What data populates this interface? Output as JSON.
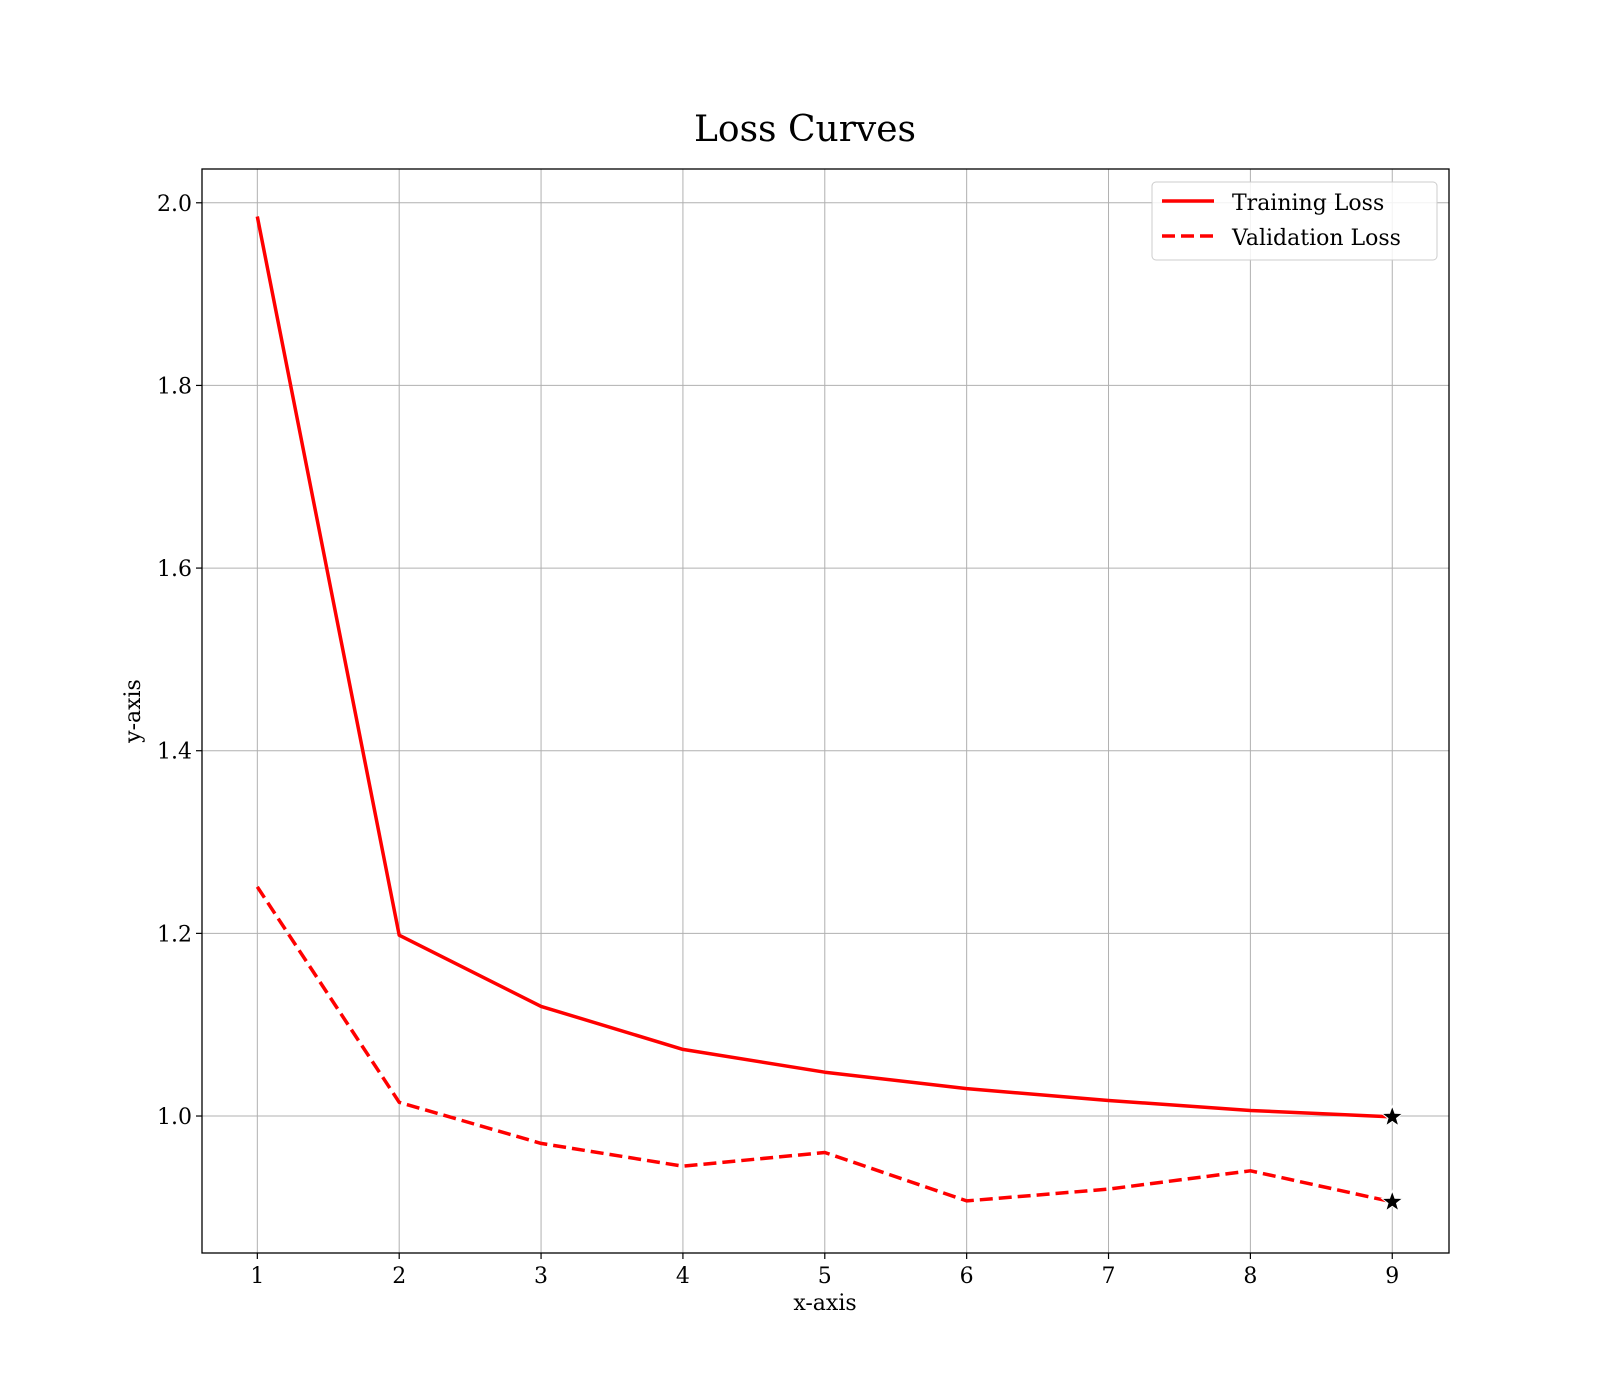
{
  "chart_data": {
    "type": "line",
    "title": "Loss Curves",
    "xlabel": "x-axis",
    "ylabel": "y-axis",
    "x": [
      1,
      2,
      3,
      4,
      5,
      6,
      7,
      8,
      9
    ],
    "xlim": [
      0.61,
      9.4
    ],
    "ylim": [
      0.85,
      2.037
    ],
    "xticks": [
      1,
      2,
      3,
      4,
      5,
      6,
      7,
      8,
      9
    ],
    "yticks": [
      1.0,
      1.2,
      1.4,
      1.6,
      1.8,
      2.0
    ],
    "grid": true,
    "legend_position": "top-right",
    "series": [
      {
        "name": "Training Loss",
        "style": "solid",
        "color": "#ff0000",
        "values": [
          1.985,
          1.198,
          1.12,
          1.073,
          1.048,
          1.03,
          1.017,
          1.006,
          0.999
        ]
      },
      {
        "name": "Validation Loss",
        "style": "dashed",
        "color": "#ff0000",
        "values": [
          1.251,
          1.015,
          0.97,
          0.945,
          0.96,
          0.907,
          0.92,
          0.94,
          0.906
        ]
      }
    ],
    "markers": [
      {
        "series": "Training Loss",
        "x": 9,
        "y": 0.999,
        "symbol": "star-icon",
        "color": "#000000"
      },
      {
        "series": "Validation Loss",
        "x": 9,
        "y": 0.906,
        "symbol": "star-icon",
        "color": "#000000"
      }
    ]
  }
}
